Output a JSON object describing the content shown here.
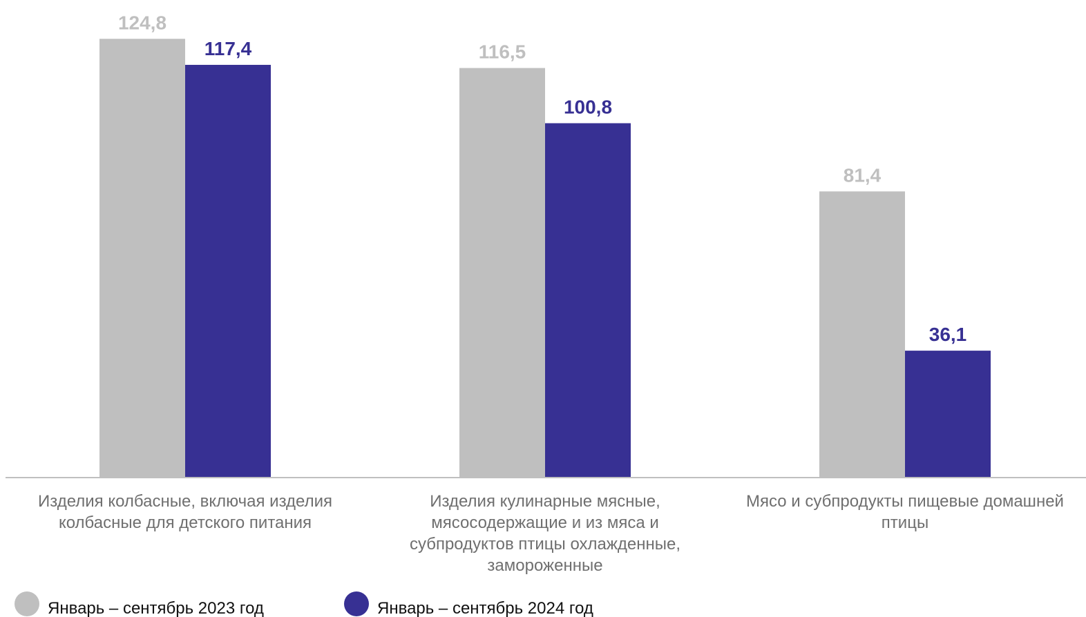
{
  "chart_data": {
    "type": "bar",
    "title": "",
    "xlabel": "",
    "ylabel": "",
    "ylim": [
      0,
      130
    ],
    "grid": false,
    "legend_position": "bottom-left",
    "categories": [
      [
        "Изделия колбасные, включая изделия",
        "колбасные для детского питания"
      ],
      [
        "Изделия кулинарные мясные,",
        "мясосодержащие и из мяса и",
        "субпродуктов птицы охлажденные,",
        "замороженные"
      ],
      [
        "Мясо и субпродукты пищевые домашней",
        "птицы"
      ]
    ],
    "series": [
      {
        "name": "Январь – сентябрь 2023 год",
        "color": "#bfbfbf",
        "values": [
          124.8,
          116.5,
          81.4
        ],
        "value_labels": [
          "124,8",
          "116,5",
          "81,4"
        ]
      },
      {
        "name": "Январь – сентябрь 2024 год",
        "color": "#373093",
        "values": [
          117.4,
          100.8,
          36.1
        ],
        "value_labels": [
          "117,4",
          "100,8",
          "36,1"
        ]
      }
    ],
    "axis_color": "#bfbfbf"
  }
}
